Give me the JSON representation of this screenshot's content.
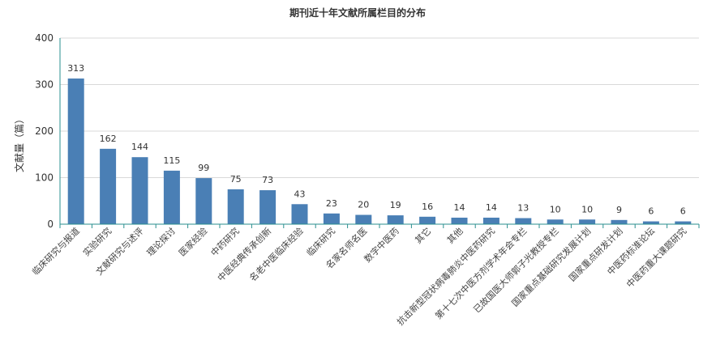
{
  "chart_data": {
    "type": "bar",
    "title": "期刊近十年文献所属栏目的分布",
    "ylabel": "文献量（篇）",
    "xlabel": "",
    "ylim": [
      0,
      400
    ],
    "yticks": [
      0,
      100,
      200,
      300,
      400
    ],
    "grid": true,
    "legend": "none",
    "bar_color": "#4a7fb5",
    "categories": [
      "临床研究与报道",
      "实验研究",
      "文献研究与述评",
      "理论探讨",
      "医家经验",
      "中药研究",
      "中医经典传承创新",
      "名老中医临床经验",
      "临床研究",
      "名家名师名医",
      "数字中医药",
      "其它",
      "其他",
      "抗击新型冠状病毒肺炎中医药研究",
      "第十七次中医方剂学术年会专栏",
      "已故国医大师郭子光教授专栏",
      "国家重点基础研究发展计划",
      "国家重点研发计划",
      "中医药标准论坛",
      "中医药重大课题研究"
    ],
    "values": [
      313,
      162,
      144,
      115,
      99,
      75,
      73,
      43,
      23,
      20,
      19,
      16,
      14,
      14,
      13,
      10,
      10,
      9,
      6,
      6
    ]
  }
}
